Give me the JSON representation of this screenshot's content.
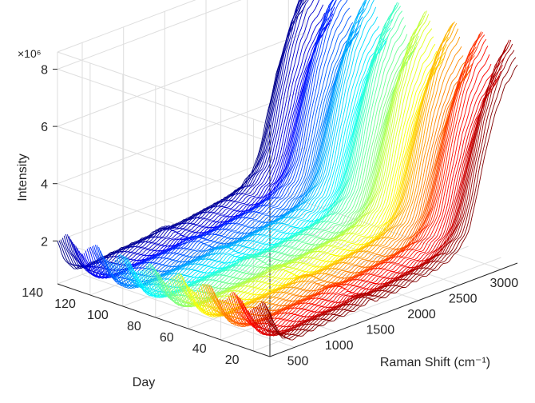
{
  "chart_data": {
    "type": "line",
    "subtype": "3d-waterfall",
    "title": "",
    "xlabel": "Raman Shift (cm⁻¹)",
    "ylabel": "Day",
    "zlabel": "Intensity",
    "z_exponent": "×10⁶",
    "xlim": [
      200,
      3200
    ],
    "ylim": [
      10,
      140
    ],
    "zlim": [
      0.5,
      8.6
    ],
    "xticks": [
      500,
      1000,
      1500,
      2000,
      2500,
      3000
    ],
    "yticks": [
      20,
      40,
      60,
      80,
      100,
      120,
      140
    ],
    "zticks": [
      2,
      4,
      6,
      8
    ],
    "grid": true,
    "colormap": "jet",
    "series_count": 130,
    "day_range": [
      10,
      140
    ],
    "shape_points": {
      "x": [
        200,
        260,
        340,
        420,
        500,
        620,
        800,
        1000,
        1200,
        1300,
        1400,
        1450,
        1500,
        1700,
        1900,
        2200,
        2400,
        2500,
        2560,
        2620,
        2680,
        2750,
        2850,
        2950,
        3050,
        3150,
        3200
      ],
      "y": [
        2.2,
        1.6,
        1.1,
        0.9,
        0.85,
        0.88,
        0.95,
        1.0,
        1.05,
        1.08,
        1.2,
        1.18,
        1.1,
        1.15,
        1.25,
        1.4,
        1.6,
        1.9,
        2.1,
        2.5,
        3.2,
        4.2,
        5.5,
        6.5,
        7.2,
        7.6,
        7.8
      ]
    }
  }
}
